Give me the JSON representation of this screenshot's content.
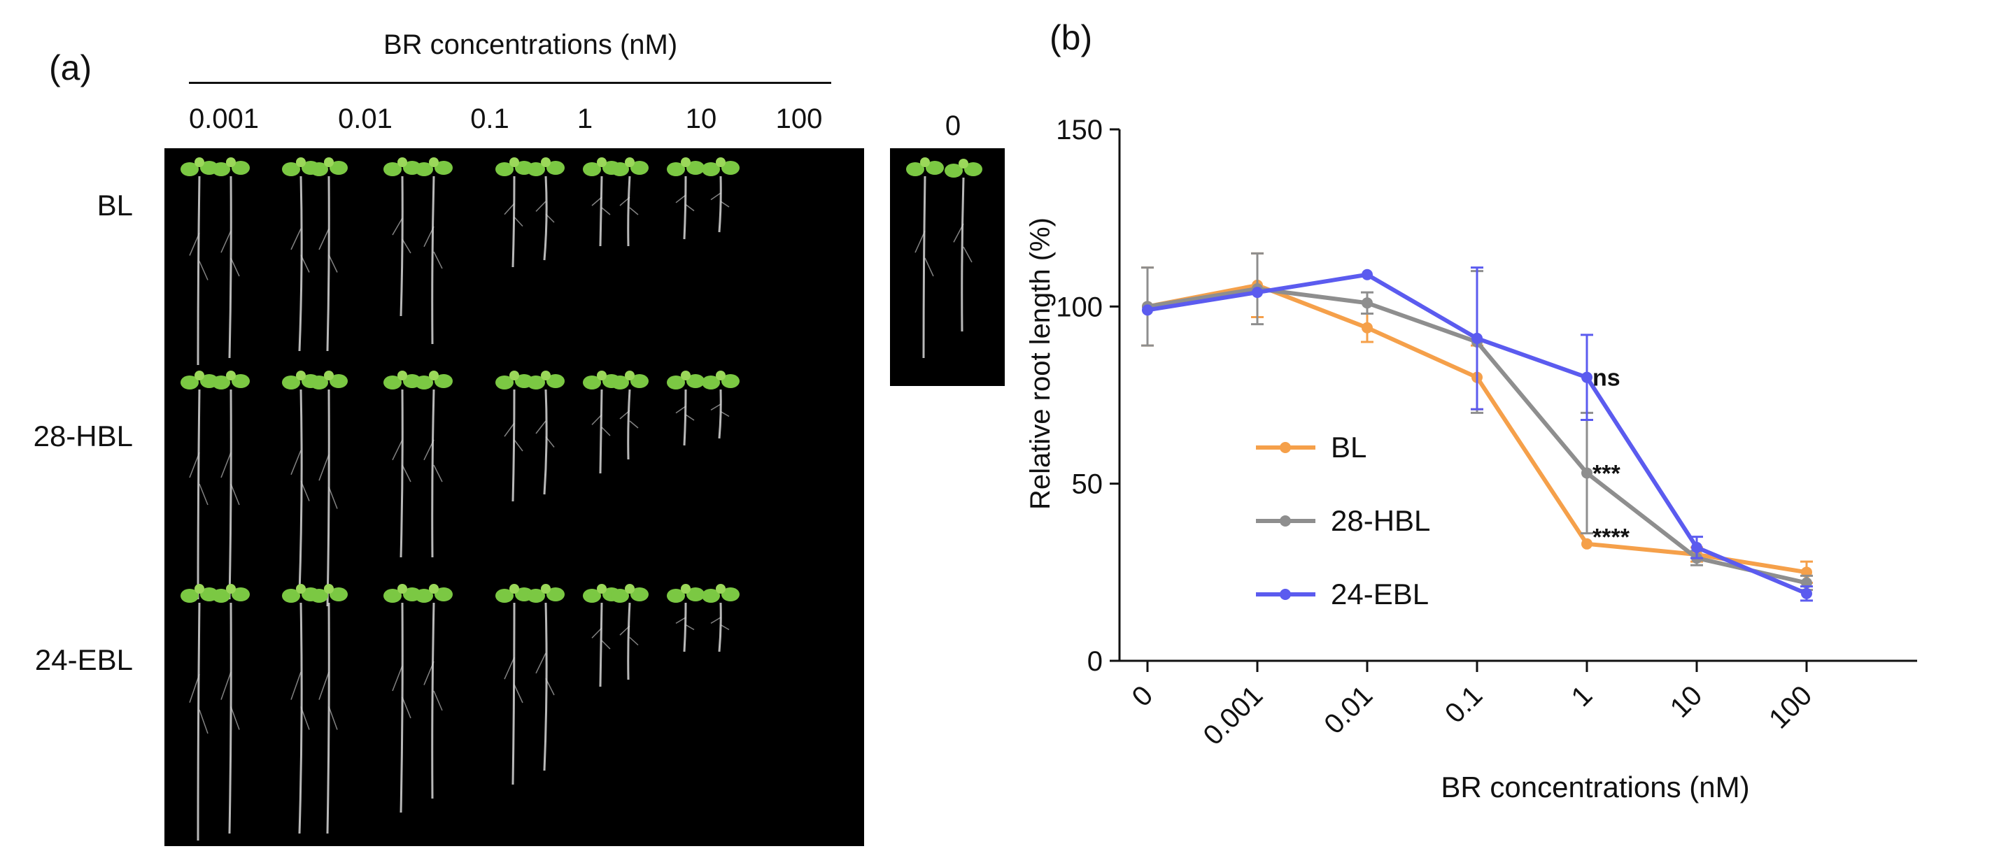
{
  "panel_a": {
    "label": "(a)",
    "header": "BR concentrations (nM)",
    "concentrations": [
      "0.001",
      "0.01",
      "0.1",
      "1",
      "10",
      "100"
    ],
    "control_label": "0",
    "rows": [
      "BL",
      "28-HBL",
      "24-EBL"
    ],
    "image_description": "Photograph of Arabidopsis seedlings on black background"
  },
  "panel_b": {
    "label": "(b)"
  },
  "colors": {
    "BL": "#F5A04A",
    "28-HBL": "#8E8E8E",
    "24-EBL": "#5B5BEF",
    "seedling_leaf": "#7BC843",
    "root": "#d8d8d8"
  },
  "chart_data": {
    "type": "line",
    "title": "",
    "xlabel": "BR concentrations (nM)",
    "ylabel": "Relative root length (%)",
    "categories": [
      "0",
      "0.001",
      "0.01",
      "0.1",
      "1",
      "10",
      "100"
    ],
    "ylim": [
      0,
      150
    ],
    "yticks": [
      "0",
      "50",
      "100",
      "150"
    ],
    "series": [
      {
        "name": "BL",
        "values": [
          100,
          106,
          94,
          80,
          33,
          30,
          25
        ],
        "errors": [
          11,
          9,
          4,
          9,
          0,
          2,
          3
        ]
      },
      {
        "name": "28-HBL",
        "values": [
          100,
          105,
          101,
          90,
          53,
          29,
          22
        ],
        "errors": [
          11,
          10,
          3,
          20,
          17,
          2,
          2
        ]
      },
      {
        "name": "24-EBL",
        "values": [
          99,
          104,
          109,
          91,
          80,
          32,
          19
        ],
        "errors": [
          0,
          0,
          0,
          20,
          12,
          3,
          2
        ]
      }
    ],
    "annotations": [
      {
        "text": "ns",
        "x": "1",
        "y": 80
      },
      {
        "text": "***",
        "x": "1",
        "y": 53
      },
      {
        "text": "****",
        "x": "1",
        "y": 35
      }
    ]
  }
}
